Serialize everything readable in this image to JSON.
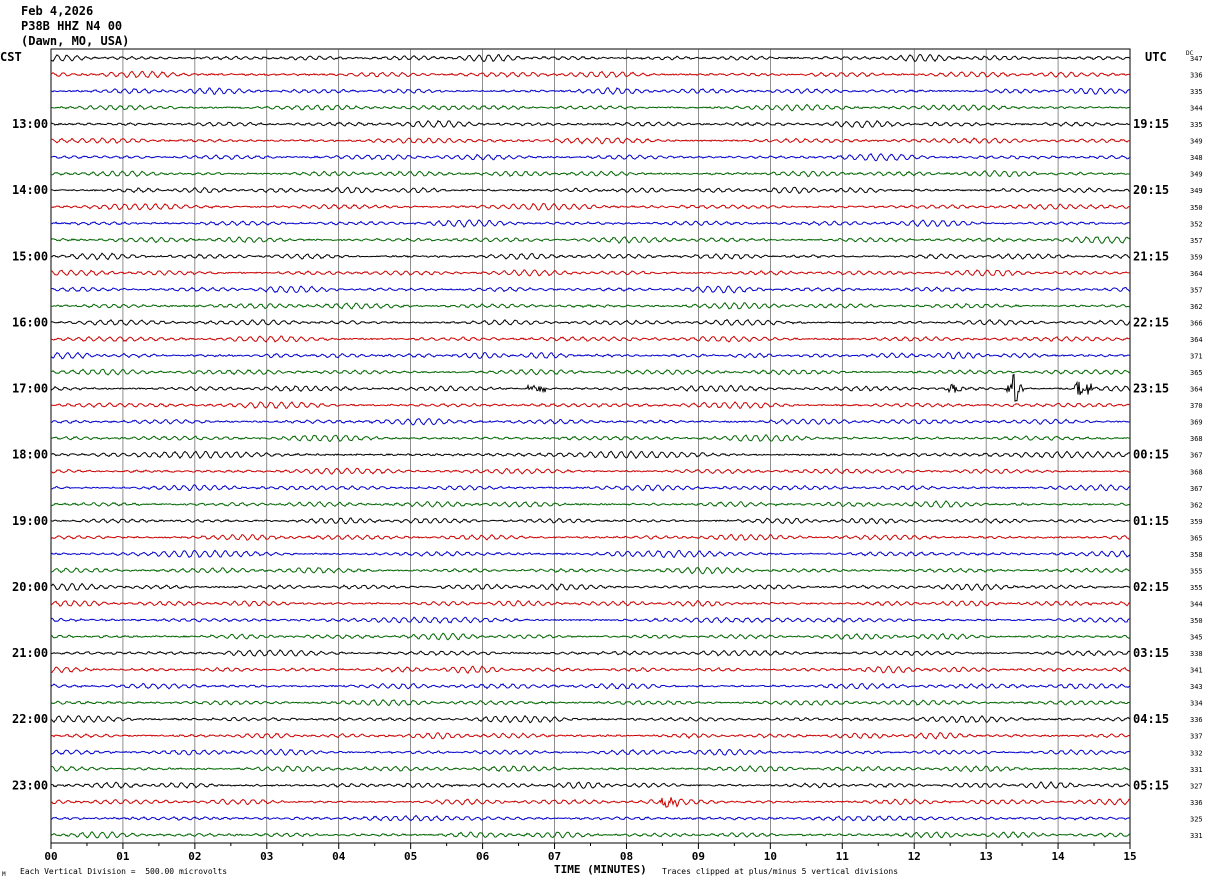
{
  "header": {
    "date": "Feb 4,2026",
    "station": "P38B HHZ N4 00",
    "location": "(Dawn, MO, USA)"
  },
  "left_timezone": "CST",
  "right_timezone": "UTC",
  "dc_header": "DC",
  "footer": {
    "scale_note": "Each Vertical Division =  500.00 microvolts",
    "xlabel": "TIME (MINUTES)",
    "clip_note": "Traces clipped at plus/minus 5 vertical divisions",
    "corner_mark": "M"
  },
  "colors": {
    "trace_cycle": [
      "#000000",
      "#cc0000",
      "#0000cc",
      "#006600"
    ],
    "grid": "#000000"
  },
  "chart_data": {
    "type": "line",
    "title": "P38B HHZ N4 00",
    "xlabel": "TIME (MINUTES)",
    "ylabel": "",
    "x_ticks": [
      "00",
      "01",
      "02",
      "03",
      "04",
      "05",
      "06",
      "07",
      "08",
      "09",
      "10",
      "11",
      "12",
      "13",
      "14",
      "15"
    ],
    "xlim": [
      0,
      15
    ],
    "grid": true,
    "left_hour_labels": [
      "13:00",
      "14:00",
      "15:00",
      "16:00",
      "17:00",
      "18:00",
      "19:00",
      "20:00",
      "21:00",
      "22:00",
      "23:00"
    ],
    "right_hour_labels": [
      "19:15",
      "20:15",
      "21:15",
      "22:15",
      "23:15",
      "00:15",
      "01:15",
      "02:15",
      "03:15",
      "04:15",
      "05:15"
    ],
    "trace_count": 48,
    "dc_offsets": [
      347,
      336,
      335,
      344,
      335,
      349,
      348,
      349,
      349,
      350,
      352,
      357,
      359,
      364,
      357,
      362,
      366,
      364,
      371,
      365,
      364,
      370,
      369,
      368,
      367,
      368,
      367,
      362,
      359,
      365,
      358,
      355,
      355,
      344,
      350,
      345,
      338,
      341,
      343,
      334,
      336,
      337,
      332,
      331,
      327,
      336,
      325,
      331
    ],
    "events": [
      {
        "trace": 20,
        "minute": 6.75,
        "note": "small burst"
      },
      {
        "trace": 20,
        "minute": 12.6,
        "note": "small burst"
      },
      {
        "trace": 20,
        "minute": 13.4,
        "note": "spike"
      },
      {
        "trace": 20,
        "minute": 14.35,
        "note": "burst"
      },
      {
        "trace": 45,
        "minute": 8.6,
        "note": "small burst"
      }
    ]
  }
}
